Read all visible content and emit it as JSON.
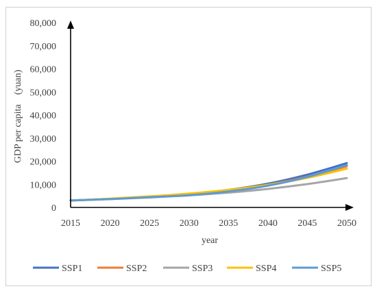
{
  "chart_data": {
    "type": "line",
    "title": "",
    "xlabel": "year",
    "ylabel": "GDP per capita　(yuan)",
    "x": [
      2015,
      2020,
      2025,
      2030,
      2035,
      2040,
      2045,
      2050
    ],
    "x_tick_labels": [
      "2015",
      "2020",
      "2025",
      "2030",
      "2035",
      "2040",
      "2045",
      "2050"
    ],
    "ylim": [
      0,
      80000
    ],
    "y_ticks": [
      0,
      10000,
      20000,
      30000,
      40000,
      50000,
      60000,
      70000,
      80000
    ],
    "y_tick_labels": [
      "0",
      "10,000",
      "20,000",
      "30,000",
      "40,000",
      "50,000",
      "60,000",
      "70,000",
      "80,000"
    ],
    "grid": false,
    "legend_position": "bottom",
    "series": [
      {
        "name": "SSP1",
        "color": "#4472c4",
        "values": [
          3000,
          3700,
          4500,
          5700,
          7600,
          10300,
          14200,
          19200
        ]
      },
      {
        "name": "SSP2",
        "color": "#ed7d31",
        "values": [
          3000,
          3700,
          4500,
          5600,
          7300,
          9800,
          13300,
          17800
        ]
      },
      {
        "name": "SSP3",
        "color": "#a5a5a5",
        "values": [
          3000,
          3600,
          4300,
          5200,
          6400,
          8000,
          10100,
          12700
        ]
      },
      {
        "name": "SSP4",
        "color": "#ffc000",
        "values": [
          3000,
          3800,
          4800,
          6000,
          7600,
          9800,
          12800,
          16800
        ]
      },
      {
        "name": "SSP5",
        "color": "#5b9bd5",
        "values": [
          3000,
          3600,
          4400,
          5300,
          6900,
          9400,
          13200,
          18300
        ]
      }
    ]
  }
}
